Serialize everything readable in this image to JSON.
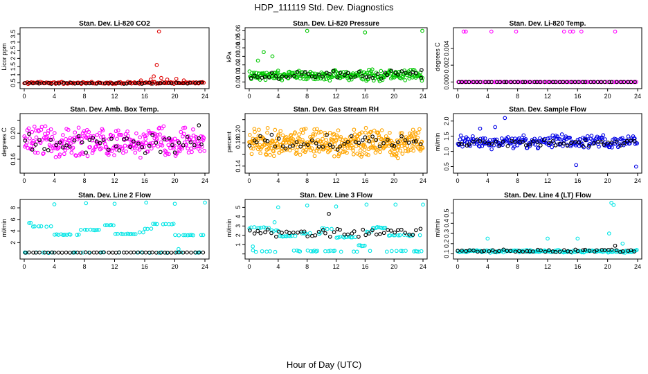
{
  "figure": {
    "title": "HDP_111119  Std. Dev. Diagnostics",
    "xlabel": "Hour of Day (UTC)"
  },
  "chart_data": [
    {
      "type": "scatter",
      "title": "Stan. Dev. Li-820 CO2",
      "ylabel": "Licor ppm",
      "xlim": [
        0,
        24
      ],
      "xticks": [
        "0",
        "4",
        "8",
        "12",
        "16",
        "20",
        "24"
      ],
      "ylim": [
        0.4,
        3.8
      ],
      "yticks": [
        0.5,
        1.0,
        1.5,
        2.0,
        2.5,
        3.0,
        3.5
      ],
      "ytick_labels": [
        "0.5",
        "1",
        "1.5",
        "2",
        "2.5",
        "3",
        "3.5"
      ],
      "series": [
        {
          "name": "red",
          "color": "#e00000",
          "base": 0.5,
          "spread": 0.05,
          "n": 140,
          "seed": 11,
          "extra": [
            [
              17.9,
              3.65
            ],
            [
              17.6,
              1.6
            ],
            [
              17.2,
              0.9
            ],
            [
              18.2,
              0.8
            ],
            [
              19.0,
              0.7
            ],
            [
              20.2,
              0.75
            ],
            [
              21.2,
              0.65
            ],
            [
              16.8,
              0.7
            ],
            [
              15.5,
              0.65
            ]
          ]
        },
        {
          "name": "black",
          "color": "#000000",
          "base": 0.48,
          "spread": 0.03,
          "n": 48,
          "seed": 12,
          "extra": []
        }
      ]
    },
    {
      "type": "scatter",
      "title": "Stan. Dev. Li-820 Pressure",
      "ylabel": "kPa",
      "xlim": [
        0,
        24
      ],
      "xticks": [
        "0",
        "4",
        "8",
        "12",
        "16",
        "20",
        "24"
      ],
      "ylim": [
        -0.003,
        0.062
      ],
      "yticks": [
        0.0,
        0.01,
        0.02,
        0.03,
        0.04,
        0.05,
        0.06
      ],
      "ytick_labels": [
        "0.00",
        "0.01",
        "0.02",
        "0.03",
        "0.04",
        "0.05",
        "0.06"
      ],
      "series": [
        {
          "name": "green",
          "color": "#00c800",
          "base": 0.008,
          "spread": 0.005,
          "n": 260,
          "seed": 21,
          "extra": [
            [
              8.0,
              0.06
            ],
            [
              16.0,
              0.058
            ],
            [
              23.9,
              0.06
            ],
            [
              3.2,
              0.03
            ],
            [
              2.0,
              0.035
            ],
            [
              1.2,
              0.025
            ]
          ]
        },
        {
          "name": "black",
          "color": "#000000",
          "base": 0.008,
          "spread": 0.004,
          "n": 48,
          "seed": 22,
          "extra": [
            [
              23.8,
              0.014
            ]
          ]
        }
      ]
    },
    {
      "type": "scatter",
      "title": "Stan. Dev. Li-820 Temp.",
      "ylabel": "degrees C",
      "xlim": [
        0,
        24
      ],
      "xticks": [
        "0",
        "4",
        "8",
        "12",
        "16",
        "20",
        "24"
      ],
      "ylim": [
        -0.0003,
        0.0063
      ],
      "yticks": [
        0.0,
        0.002,
        0.004
      ],
      "ytick_labels": [
        "0.000",
        "0.002",
        "0.004"
      ],
      "series": [
        {
          "name": "magenta",
          "color": "#ff00ff",
          "base": 0.0,
          "spread": 0.0,
          "n": 80,
          "seed": 31,
          "extra": [
            [
              0.8,
              0.006
            ],
            [
              1.1,
              0.006
            ],
            [
              4.5,
              0.006
            ],
            [
              7.8,
              0.006
            ],
            [
              14.2,
              0.006
            ],
            [
              15.0,
              0.006
            ],
            [
              15.4,
              0.006
            ],
            [
              16.5,
              0.006
            ],
            [
              21.0,
              0.006
            ]
          ]
        },
        {
          "name": "black",
          "color": "#000000",
          "base": 0.0,
          "spread": 0.0,
          "n": 48,
          "seed": 32,
          "extra": []
        }
      ]
    },
    {
      "type": "scatter",
      "title": "Stan. Dev. Amb. Box Temp.",
      "ylabel": "degrees C",
      "xlim": [
        0,
        24
      ],
      "xticks": [
        "0",
        "4",
        "8",
        "12",
        "16",
        "20",
        "24"
      ],
      "ylim": [
        0.145,
        0.228
      ],
      "yticks": [
        0.16,
        0.18,
        0.2,
        0.22
      ],
      "ytick_labels": [
        "0.16",
        "",
        "0.20",
        ""
      ],
      "series": [
        {
          "name": "magenta",
          "color": "#ff00ff",
          "base": 0.187,
          "spread": 0.017,
          "n": 300,
          "seed": 41,
          "extra": []
        },
        {
          "name": "black",
          "color": "#000000",
          "base": 0.184,
          "spread": 0.012,
          "n": 48,
          "seed": 42,
          "extra": [
            [
              23.2,
              0.212
            ]
          ]
        }
      ]
    },
    {
      "type": "scatter",
      "title": "Stan. Dev. Gas Stream RH",
      "ylabel": "percent",
      "xlim": [
        0,
        24
      ],
      "xticks": [
        "0",
        "4",
        "8",
        "12",
        "16",
        "20",
        "24"
      ],
      "ylim": [
        0.135,
        0.228
      ],
      "yticks": [
        0.14,
        0.16,
        0.18,
        0.2,
        0.22
      ],
      "ytick_labels": [
        "0.14",
        "",
        "0.18",
        "0.20",
        ""
      ],
      "series": [
        {
          "name": "orange",
          "color": "#ffa500",
          "base": 0.18,
          "spread": 0.018,
          "n": 380,
          "seed": 51,
          "extra": []
        },
        {
          "name": "black",
          "color": "#000000",
          "base": 0.18,
          "spread": 0.01,
          "n": 48,
          "seed": 52,
          "extra": []
        }
      ]
    },
    {
      "type": "scatter",
      "title": "Stan. Dev. Sample Flow",
      "ylabel": "ml/min",
      "xlim": [
        0,
        24
      ],
      "xticks": [
        "0",
        "4",
        "8",
        "12",
        "16",
        "20",
        "24"
      ],
      "ylim": [
        0.42,
        2.2
      ],
      "yticks": [
        0.5,
        1.0,
        1.5,
        2.0
      ],
      "ytick_labels": [
        "0.5",
        "1.0",
        "1.5",
        "2.0"
      ],
      "series": [
        {
          "name": "blue",
          "color": "#0000e6",
          "base": 1.32,
          "spread": 0.17,
          "n": 230,
          "seed": 61,
          "extra": [
            [
              6.3,
              2.1
            ],
            [
              15.8,
              0.55
            ],
            [
              23.8,
              0.5
            ],
            [
              5.0,
              1.8
            ],
            [
              3.0,
              1.75
            ]
          ]
        },
        {
          "name": "black",
          "color": "#000000",
          "base": 1.28,
          "spread": 0.09,
          "n": 48,
          "seed": 62,
          "extra": []
        }
      ]
    },
    {
      "type": "scatter",
      "title": "Stan. Dev. Line 2 Flow",
      "ylabel": "ml/min",
      "xlim": [
        0,
        24
      ],
      "xticks": [
        "0",
        "4",
        "8",
        "12",
        "16",
        "20",
        "24"
      ],
      "ylim": [
        -0.1,
        9.2
      ],
      "yticks": [
        2,
        4,
        6,
        8
      ],
      "ytick_labels": [
        "2",
        "4",
        "6",
        "8"
      ],
      "series": [
        {
          "name": "cyan",
          "color": "#00e5e5",
          "base": 0.3,
          "spread": 0.05,
          "n": 90,
          "seed": 71,
          "steps": [
            [
              0,
              1,
              5.4
            ],
            [
              1,
              4,
              4.8
            ],
            [
              4,
              7.5,
              3.4
            ],
            [
              7.5,
              10,
              4.2
            ],
            [
              10,
              12,
              5.0
            ],
            [
              12,
              15,
              3.5
            ],
            [
              15,
              16,
              3.8
            ],
            [
              16,
              17,
              4.4
            ],
            [
              17,
              20,
              5.2
            ],
            [
              20,
              24,
              3.3
            ]
          ],
          "extra": [
            [
              4.0,
              8.6
            ],
            [
              8.2,
              8.8
            ],
            [
              12.0,
              8.7
            ],
            [
              16.2,
              8.9
            ],
            [
              20.0,
              8.7
            ],
            [
              24.0,
              8.9
            ],
            [
              20.5,
              0.9
            ]
          ]
        },
        {
          "name": "black",
          "color": "#000000",
          "base": 0.3,
          "spread": 0.02,
          "n": 48,
          "seed": 72,
          "extra": []
        }
      ]
    },
    {
      "type": "scatter",
      "title": "Stan. Dev. Line 3 Flow",
      "ylabel": "ml/min",
      "xlim": [
        0,
        24
      ],
      "xticks": [
        "0",
        "4",
        "8",
        "12",
        "16",
        "20",
        "24"
      ],
      "ylim": [
        -0.1,
        5.7
      ],
      "yticks": [
        0,
        1,
        2,
        3,
        4,
        5
      ],
      "ytick_labels": [
        "",
        "1",
        "2",
        "3",
        "4",
        "5"
      ],
      "series": [
        {
          "name": "cyan",
          "color": "#00e5e5",
          "base": 0.3,
          "spread": 0.06,
          "n": 110,
          "seed": 81,
          "steps": [
            [
              0,
              3,
              2.8
            ],
            [
              3,
              4,
              2.5
            ],
            [
              4,
              7,
              1.9
            ],
            [
              7,
              10,
              2.2
            ],
            [
              10,
              12,
              2.7
            ],
            [
              12,
              15,
              1.8
            ],
            [
              15,
              16,
              0.9
            ],
            [
              16,
              17,
              2.4
            ],
            [
              17,
              19,
              2.8
            ],
            [
              19,
              24,
              2.0
            ]
          ],
          "extra": [
            [
              4.0,
              5.0
            ],
            [
              8.0,
              5.2
            ],
            [
              12.0,
              5.1
            ],
            [
              16.2,
              5.3
            ],
            [
              20.2,
              5.3
            ],
            [
              24.0,
              5.3
            ],
            [
              3.5,
              3.4
            ],
            [
              0.5,
              0.8
            ]
          ]
        },
        {
          "name": "black",
          "color": "#000000",
          "base": 2.2,
          "spread": 0.35,
          "n": 48,
          "seed": 82,
          "extra": [
            [
              11.0,
              4.3
            ]
          ]
        }
      ]
    },
    {
      "type": "scatter",
      "title": "Stan. Dev. Line 4 (LT) Flow",
      "ylabel": "ml/min",
      "xlim": [
        0,
        24
      ],
      "xticks": [
        "0",
        "4",
        "8",
        "12",
        "16",
        "20",
        "24"
      ],
      "ylim": [
        0.09,
        0.62
      ],
      "yticks": [
        0.1,
        0.2,
        0.3,
        0.4,
        0.5
      ],
      "ytick_labels": [
        "0.1",
        "0.2",
        "0.3",
        "0.4",
        "0.5"
      ],
      "series": [
        {
          "name": "cyan",
          "color": "#00e5e5",
          "base": 0.125,
          "spread": 0.01,
          "n": 150,
          "seed": 91,
          "extra": [
            [
              20.5,
              0.6
            ],
            [
              20.8,
              0.58
            ],
            [
              4.0,
              0.25
            ],
            [
              12.0,
              0.25
            ],
            [
              16.0,
              0.25
            ],
            [
              22.0,
              0.2
            ],
            [
              20.2,
              0.3
            ]
          ]
        },
        {
          "name": "black",
          "color": "#000000",
          "base": 0.13,
          "spread": 0.01,
          "n": 48,
          "seed": 92,
          "extra": [
            [
              21.0,
              0.18
            ]
          ]
        }
      ]
    }
  ]
}
